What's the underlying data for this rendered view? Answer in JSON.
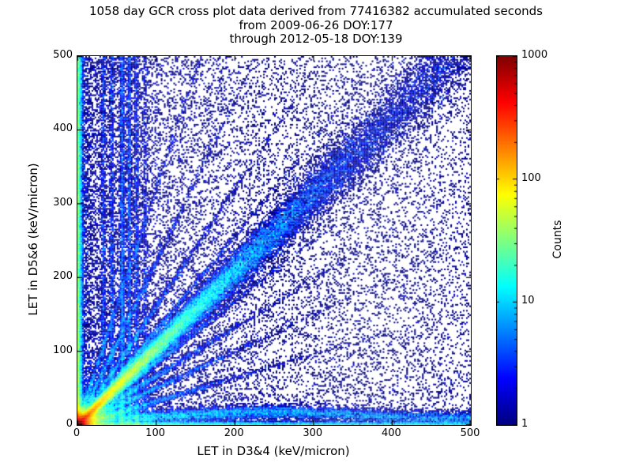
{
  "title": {
    "line1": "1058 day GCR cross plot data derived from 77416382 accumulated seconds",
    "line2": "from 2009-06-26 DOY:177",
    "line3": "through 2012-05-18 DOY:139"
  },
  "chart_data": {
    "type": "heatmap",
    "title": "1058 day GCR cross plot data derived from 77416382 accumulated seconds from 2009-06-26 DOY:177 through 2012-05-18 DOY:139",
    "xlabel": "LET in D3&4 (keV/micron)",
    "ylabel": "LET in D5&6 (keV/micron)",
    "xlim": [
      0,
      500
    ],
    "ylim": [
      0,
      500
    ],
    "x_ticks": [
      "0",
      "100",
      "200",
      "300",
      "400",
      "500"
    ],
    "y_ticks": [
      "0",
      "100",
      "200",
      "300",
      "400",
      "500"
    ],
    "grid": false,
    "colorbar": {
      "label": "Counts",
      "scale": "log",
      "range": [
        1,
        1000
      ],
      "ticks": [
        "1",
        "10",
        "100",
        "1000"
      ],
      "colormap": "jet"
    },
    "note": "2D histogram of coincident LET measurements; density features below parameterize the visible point cloud (hot diagonal correlation band y~x with intense red core at origin, horizontal band near y~10, dense left edge, fan of rays from origin, vertical streaks near x=33-86, sparse background speckle).",
    "seed": 1234,
    "bins": 250,
    "density_features": [
      {
        "kind": "uniform",
        "samples": 4000,
        "xpow": 1,
        "ypow": 1
      },
      {
        "kind": "uniform",
        "samples": 9000,
        "xpow": 1.7,
        "ypow": 1.3
      },
      {
        "kind": "uniform",
        "samples": 9000,
        "xpow": 3.2,
        "ypow": 1.0
      },
      {
        "kind": "origin_blob",
        "samples": 26000,
        "scale": 9,
        "xstretch": 1.15,
        "ystretch": 1.0
      },
      {
        "kind": "diagonal",
        "samples": 48000,
        "decay": 115,
        "tail": 0.16,
        "slope": 1.04,
        "sigma0": 2.5,
        "sigmaGrow": 0.055
      },
      {
        "kind": "horizontal_band",
        "samples": 12000,
        "xpow": 1.5,
        "y0": 9,
        "sigma": 4.5,
        "hump": 9,
        "humpX": 255,
        "humpW": 95
      },
      {
        "kind": "horizontal_edge",
        "samples": 7000,
        "xpow": 1.4,
        "sigma": 2.5
      },
      {
        "kind": "vertical_edge",
        "samples": 14000,
        "ypow": 1.25,
        "sigma": 3.0
      },
      {
        "kind": "ray",
        "samples": 2600,
        "slope": 0.32,
        "decay": 75,
        "sigma": 2.2
      },
      {
        "kind": "ray",
        "samples": 2400,
        "slope": 0.5,
        "decay": 80,
        "sigma": 2.4
      },
      {
        "kind": "ray",
        "samples": 2400,
        "slope": 0.66,
        "decay": 85,
        "sigma": 2.6
      },
      {
        "kind": "ray",
        "samples": 2200,
        "slope": 0.84,
        "decay": 90,
        "sigma": 2.4
      },
      {
        "kind": "ray",
        "samples": 2200,
        "slope": 1.28,
        "decay": 85,
        "sigma": 2.6
      },
      {
        "kind": "ray",
        "samples": 2000,
        "slope": 1.6,
        "decay": 75,
        "sigma": 3
      },
      {
        "kind": "ray",
        "samples": 1800,
        "slope": 2.2,
        "decay": 60,
        "sigma": 3.2
      },
      {
        "kind": "ray",
        "samples": 1600,
        "slope": 3.2,
        "decay": 50,
        "sigma": 3.5
      },
      {
        "kind": "vertical_streak",
        "samples": 2600,
        "x": 57,
        "sigma": 1.8,
        "ypow": 1.35
      },
      {
        "kind": "vertical_streak",
        "samples": 2000,
        "x": 66,
        "sigma": 1.6,
        "ypow": 1.4
      },
      {
        "kind": "vertical_streak",
        "samples": 1500,
        "x": 75,
        "sigma": 1.8,
        "ypow": 1.5
      },
      {
        "kind": "vertical_streak",
        "samples": 1400,
        "x": 44,
        "sigma": 1.6,
        "ypow": 1.3
      },
      {
        "kind": "vertical_streak",
        "samples": 1200,
        "x": 33,
        "sigma": 1.5,
        "ypow": 1.2
      },
      {
        "kind": "vertical_streak",
        "samples": 900,
        "x": 86,
        "sigma": 2.0,
        "ypow": 1.6
      }
    ]
  },
  "colors": {
    "background": "#ffffff",
    "axis": "#000000",
    "count_1": "#000080",
    "count_10": "#00d4ff",
    "count_100": "#ffd400",
    "count_1000": "#800000"
  }
}
